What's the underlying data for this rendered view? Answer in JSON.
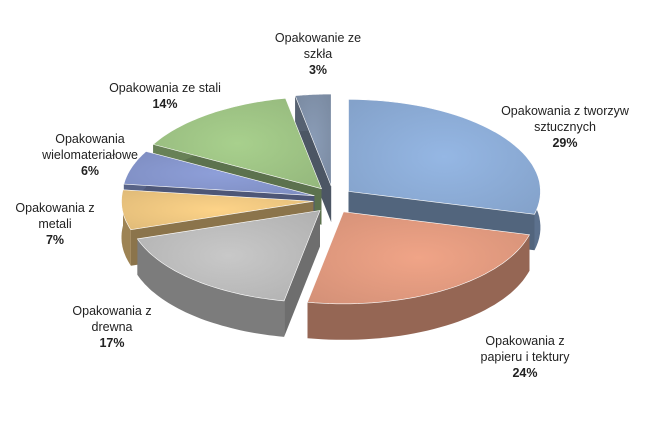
{
  "chart_data": {
    "type": "pie3d",
    "categories": [
      "Opakowania z tworzyw sztucznych",
      "Opakowania z papieru i tektury",
      "Opakowania z drewna",
      "Opakowania z metali",
      "Opakowania wielomateriałowe",
      "Opakowania ze stali",
      "Opakowanie ze szkła"
    ],
    "values": [
      29,
      24,
      17,
      7,
      6,
      14,
      3
    ],
    "value_labels": [
      "29%",
      "24%",
      "17%",
      "7%",
      "6%",
      "14%",
      "3%"
    ],
    "colors": [
      "#95b7e4",
      "#f0a487",
      "#c8c8c8",
      "#fdd388",
      "#8e9fd9",
      "#a8d08d",
      "#8a9cb6"
    ]
  }
}
